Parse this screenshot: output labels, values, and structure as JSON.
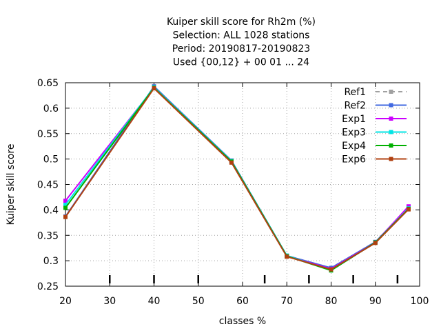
{
  "chart_data": {
    "type": "line",
    "title_lines": [
      "Kuiper skill score  for Rh2m (%)",
      "Selection: ALL   1028 stations",
      "Period: 20190817-20190823",
      "Used {00,12} + 00 01 ... 24"
    ],
    "xlabel": "classes %",
    "ylabel": "Kuiper skill score",
    "xlim": [
      20,
      100
    ],
    "ylim": [
      0.25,
      0.65
    ],
    "xticks": [
      20,
      30,
      40,
      50,
      60,
      70,
      80,
      90,
      100
    ],
    "yticks": [
      "0.25",
      "0.3",
      "0.35",
      "0.4",
      "0.45",
      "0.5",
      "0.55",
      "0.6",
      "0.65"
    ],
    "inner_ticks_x": [
      30,
      40,
      50,
      65,
      75,
      85,
      95
    ],
    "grid": true,
    "legend_position": "top-right",
    "x": [
      20,
      40,
      57.5,
      70,
      80,
      90,
      97.5
    ],
    "series": [
      {
        "name": "Ref1",
        "color": "#a0a0a0",
        "dashed": true,
        "values": [
          0.387,
          0.642,
          0.497,
          0.31,
          0.286,
          0.337,
          0.404
        ]
      },
      {
        "name": "Ref2",
        "color": "#4169e1",
        "dashed": false,
        "values": [
          0.387,
          0.643,
          0.497,
          0.31,
          0.286,
          0.337,
          0.405
        ]
      },
      {
        "name": "Exp1",
        "color": "#cc00ff",
        "dashed": false,
        "values": [
          0.418,
          0.64,
          0.495,
          0.309,
          0.284,
          0.336,
          0.407
        ]
      },
      {
        "name": "Exp3",
        "color": "#00e5e5",
        "dashed": false,
        "values": [
          0.41,
          0.641,
          0.496,
          0.31,
          0.281,
          0.336,
          0.403
        ]
      },
      {
        "name": "Exp4",
        "color": "#00b000",
        "dashed": false,
        "values": [
          0.404,
          0.64,
          0.495,
          0.309,
          0.281,
          0.336,
          0.402
        ]
      },
      {
        "name": "Exp6",
        "color": "#b04010",
        "dashed": false,
        "values": [
          0.386,
          0.639,
          0.493,
          0.308,
          0.283,
          0.335,
          0.401
        ]
      }
    ]
  }
}
